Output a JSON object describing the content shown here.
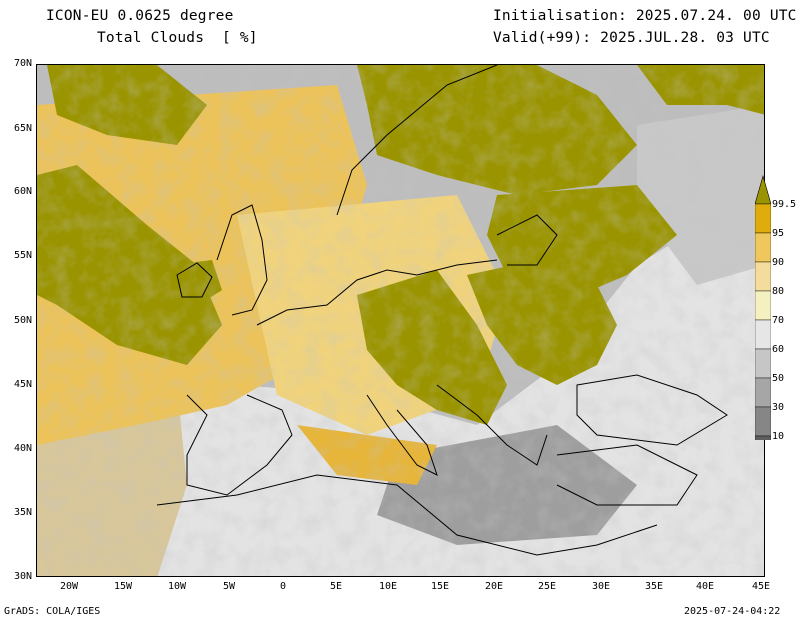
{
  "header": {
    "model": "ICON-EU 0.0625 degree",
    "field": "Total Clouds  [ %]",
    "init": "Initialisation: 2025.07.24. 00 UTC",
    "valid": "Valid(+99): 2025.JUL.28. 03 UTC"
  },
  "footer": {
    "left": "GrADS: COLA/IGES",
    "right": "2025-07-24-04:22"
  },
  "map": {
    "lat_labels": [
      "70N",
      "65N",
      "60N",
      "55N",
      "50N",
      "45N",
      "40N",
      "35N",
      "30N"
    ],
    "lon_labels": [
      "20W",
      "15W",
      "10W",
      "5W",
      "0",
      "5E",
      "10E",
      "15E",
      "20E",
      "25E",
      "30E",
      "35E",
      "40E",
      "45E"
    ]
  },
  "colorbar": {
    "labels": [
      "99.5",
      "95",
      "90",
      "80",
      "70",
      "60",
      "50",
      "30",
      "10"
    ],
    "colors": [
      "#e0ac0c",
      "#f0c75c",
      "#f3dc9c",
      "#f4f0c0",
      "#e6e6e6",
      "#c6c6c6",
      "#a6a6a6",
      "#868686",
      "#5e5e5e"
    ],
    "top_color": "#9a9400"
  },
  "palette": {
    "overcast": "#9a9400",
    "clear": "#e3e3e3"
  }
}
